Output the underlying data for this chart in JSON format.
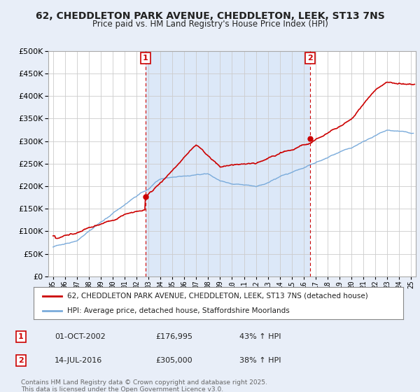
{
  "title": "62, CHEDDLETON PARK AVENUE, CHEDDLETON, LEEK, ST13 7NS",
  "subtitle": "Price paid vs. HM Land Registry's House Price Index (HPI)",
  "title_fontsize": 10,
  "subtitle_fontsize": 8.5,
  "ytick_values": [
    0,
    50000,
    100000,
    150000,
    200000,
    250000,
    300000,
    350000,
    400000,
    450000,
    500000
  ],
  "ylim": [
    0,
    500000
  ],
  "xlim_start": 1994.6,
  "xlim_end": 2025.4,
  "background_color": "#e8eef8",
  "plot_bg_color": "#ffffff",
  "shaded_region_color": "#dce8f8",
  "grid_color": "#cccccc",
  "red_line_color": "#cc0000",
  "blue_line_color": "#7aabdb",
  "vline_color": "#cc0000",
  "marker1_x": 2002.75,
  "marker1_y": 176995,
  "marker1_label": "1",
  "marker1_date": "01-OCT-2002",
  "marker1_price": "£176,995",
  "marker1_hpi": "43% ↑ HPI",
  "marker2_x": 2016.54,
  "marker2_y": 305000,
  "marker2_label": "2",
  "marker2_date": "14-JUL-2016",
  "marker2_price": "£305,000",
  "marker2_hpi": "38% ↑ HPI",
  "legend_line1": "62, CHEDDLETON PARK AVENUE, CHEDDLETON, LEEK, ST13 7NS (detached house)",
  "legend_line2": "HPI: Average price, detached house, Staffordshire Moorlands",
  "footer": "Contains HM Land Registry data © Crown copyright and database right 2025.\nThis data is licensed under the Open Government Licence v3.0."
}
